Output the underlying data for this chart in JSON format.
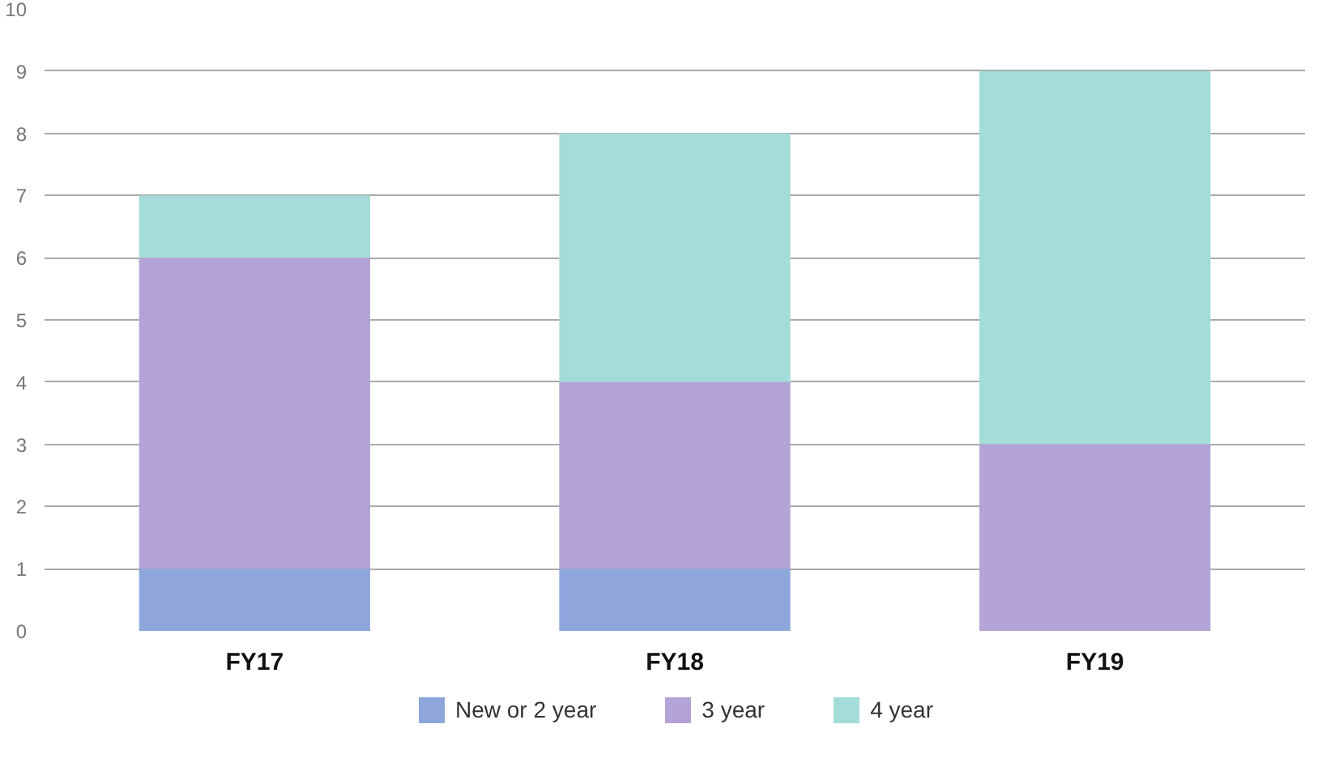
{
  "chart_data": {
    "type": "bar",
    "stacked": true,
    "categories": [
      "FY17",
      "FY18",
      "FY19"
    ],
    "series": [
      {
        "name": "New or 2 year",
        "color": "#8ea6dc",
        "values": [
          1,
          1,
          0
        ]
      },
      {
        "name": "3 year",
        "color": "#b3a3d6",
        "values": [
          5,
          3,
          3
        ]
      },
      {
        "name": "4 year",
        "color": "#a3dcd8",
        "values": [
          1,
          4,
          6
        ]
      }
    ],
    "ylim": [
      0,
      10
    ],
    "yticks": [
      0,
      1,
      2,
      3,
      4,
      5,
      6,
      7,
      8,
      9,
      10
    ],
    "grid": "y",
    "legend": "bottom"
  }
}
